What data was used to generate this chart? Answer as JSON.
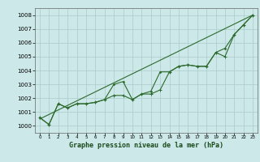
{
  "title": "",
  "xlabel": "Graphe pression niveau de la mer (hPa)",
  "bg_color": "#cce8e8",
  "grid_color": "#aacccc",
  "line_color": "#2d6a2d",
  "x_min": 0,
  "x_max": 23,
  "y_min": 999.5,
  "y_max": 1008.5,
  "yticks": [
    1000,
    1001,
    1002,
    1003,
    1004,
    1005,
    1006,
    1007,
    1008
  ],
  "series1_y": [
    1000.6,
    1000.1,
    1001.6,
    1001.3,
    1001.6,
    1001.6,
    1001.7,
    1001.9,
    1002.2,
    1002.2,
    1001.9,
    1002.3,
    1002.3,
    1002.6,
    1003.9,
    1004.3,
    1004.4,
    1004.3,
    1004.3,
    1005.3,
    1005.0,
    1006.6,
    1007.3,
    1008.0
  ],
  "series2_y": [
    1000.6,
    1000.1,
    1001.6,
    1001.3,
    1001.6,
    1001.6,
    1001.7,
    1001.9,
    1003.0,
    1003.2,
    1001.9,
    1002.3,
    1002.5,
    1003.9,
    1003.9,
    1004.3,
    1004.4,
    1004.3,
    1004.3,
    1005.3,
    1005.6,
    1006.6,
    1007.3,
    1008.0
  ],
  "trend_x": [
    0,
    23
  ],
  "trend_y": [
    1000.5,
    1008.0
  ]
}
